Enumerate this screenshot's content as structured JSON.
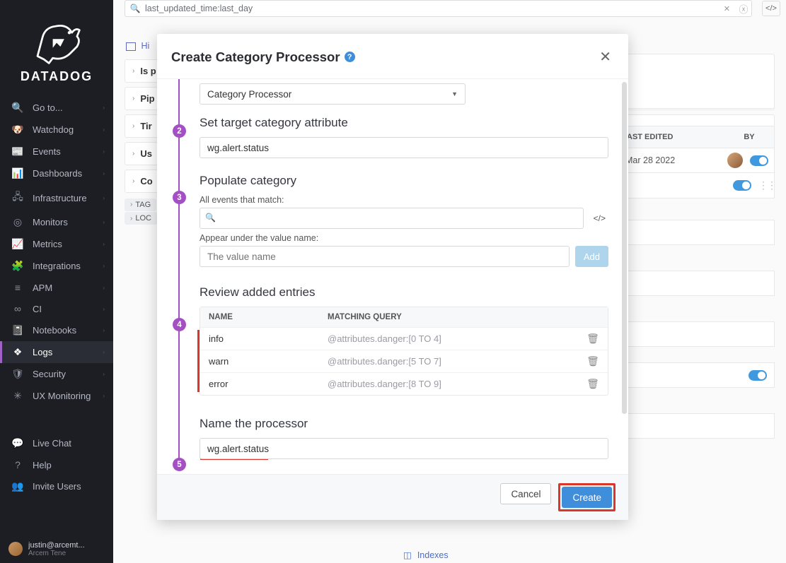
{
  "brand": "DATADOG",
  "sidebar": {
    "items": [
      {
        "label": "Go to...",
        "icon": "🔍"
      },
      {
        "label": "Watchdog",
        "icon": "🐶"
      },
      {
        "label": "Events",
        "icon": "📰"
      },
      {
        "label": "Dashboards",
        "icon": "📊"
      },
      {
        "label": "Infrastructure",
        "icon": "🖧"
      },
      {
        "label": "Monitors",
        "icon": "◎"
      },
      {
        "label": "Metrics",
        "icon": "📈"
      },
      {
        "label": "Integrations",
        "icon": "🧩"
      },
      {
        "label": "APM",
        "icon": "≡"
      },
      {
        "label": "CI",
        "icon": "∞"
      },
      {
        "label": "Notebooks",
        "icon": "📓"
      },
      {
        "label": "Logs",
        "icon": "❖",
        "active": true
      },
      {
        "label": "Security",
        "icon": "🛡"
      },
      {
        "label": "UX Monitoring",
        "icon": "✳"
      }
    ],
    "footer": [
      {
        "label": "Live Chat",
        "icon": "💬"
      },
      {
        "label": "Help",
        "icon": "?"
      },
      {
        "label": "Invite Users",
        "icon": "👥"
      }
    ],
    "user": {
      "name": "justin@arcemt...",
      "org": "Arcem Tene"
    }
  },
  "topbar": {
    "query": "last_updated_time:last_day"
  },
  "background": {
    "crumb": "Hi",
    "rows": [
      "Is p",
      "Pip",
      "Tir",
      "Us",
      "Co"
    ],
    "tag_chips": [
      "TAG",
      "LOC"
    ],
    "headers": {
      "last_edited": "AST EDITED",
      "by": "BY"
    },
    "date": "Mar 28 2022",
    "indexes": "Indexes"
  },
  "modal": {
    "title": "Create Category Processor",
    "processor_type": "Category Processor",
    "steps": {
      "s2": "Set target category attribute",
      "s3": "Populate category",
      "s4": "Review added entries",
      "s5": "Name the processor"
    },
    "target_attribute": "wg.alert.status",
    "match_label": "All events that match:",
    "appear_label": "Appear under the value name:",
    "value_placeholder": "The value name",
    "add_btn": "Add",
    "table": {
      "col_name": "NAME",
      "col_mq": "MATCHING QUERY",
      "rows": [
        {
          "name": "info",
          "mq": "@attributes.danger:[0 TO 4]"
        },
        {
          "name": "warn",
          "mq": "@attributes.danger:[5 TO 7]"
        },
        {
          "name": "error",
          "mq": "@attributes.danger:[8 TO 9]"
        }
      ]
    },
    "processor_name": "wg.alert.status",
    "cancel": "Cancel",
    "create": "Create"
  },
  "colors": {
    "accent_purple": "#a44fc4",
    "primary_blue": "#3f8edc",
    "red": "#d9372c",
    "sidebar_bg": "#1c1e24"
  }
}
